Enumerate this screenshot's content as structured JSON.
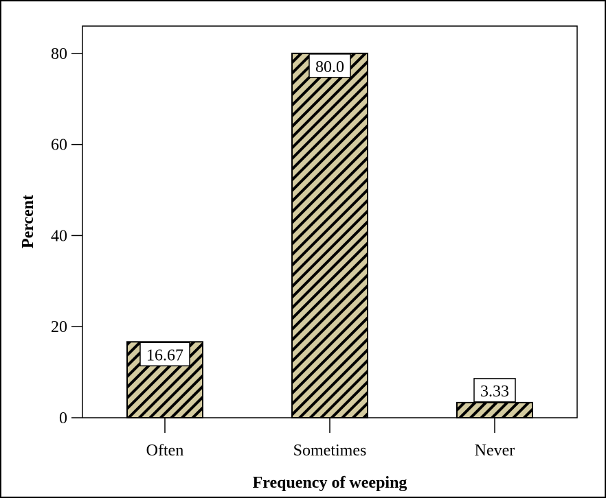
{
  "chart_data": {
    "type": "bar",
    "categories": [
      "Often",
      "Sometimes",
      "Never"
    ],
    "values": [
      16.67,
      80.0,
      3.33
    ],
    "data_labels": [
      "16.67",
      "80.0",
      "3.33"
    ],
    "title": "",
    "xlabel": "Frequency of weeping",
    "ylabel": "Percent",
    "ylim": [
      0,
      86
    ],
    "yticks": [
      0,
      20,
      40,
      60,
      80
    ],
    "ytick_labels": [
      "0",
      "20",
      "40",
      "60",
      "80"
    ],
    "grid": false,
    "legend": "none",
    "bar_fill": "#d4cba0",
    "bar_stripe": "#000000",
    "bar_pattern": "diagonal-hatch"
  }
}
